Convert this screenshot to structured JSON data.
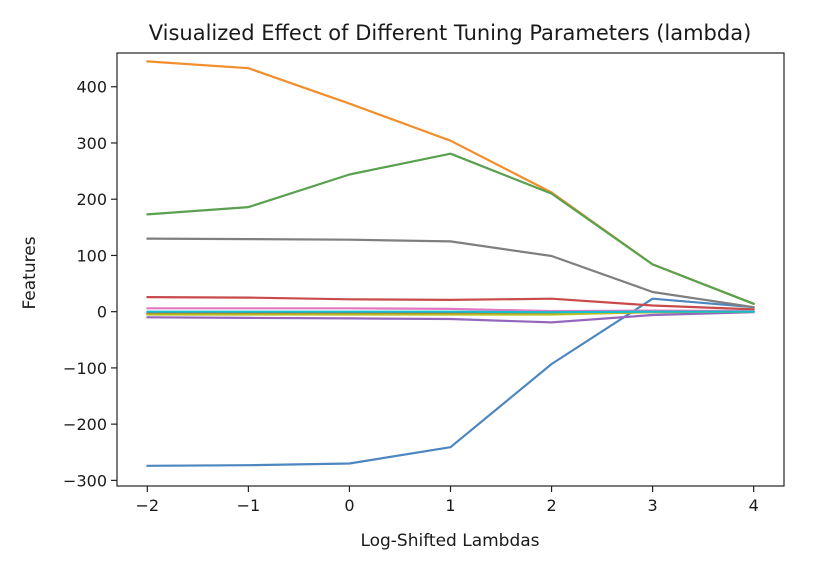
{
  "chart_data": {
    "type": "line",
    "title": "Visualized Effect of Different Tuning Parameters (lambda)",
    "xlabel": "Log-Shifted Lambdas",
    "ylabel": "Features",
    "x": [
      -2,
      -1,
      0,
      1,
      2,
      3,
      4
    ],
    "x_tick_labels": [
      "−2",
      "−1",
      "0",
      "1",
      "2",
      "3",
      "4"
    ],
    "xlim": [
      -2.3,
      4.3
    ],
    "y_ticks": [
      400,
      300,
      200,
      100,
      0,
      -100,
      -200,
      -300
    ],
    "y_tick_labels": [
      "400",
      "300",
      "200",
      "100",
      "0",
      "−100",
      "−200",
      "−300"
    ],
    "ylim": [
      -310,
      460
    ],
    "grid": false,
    "legend": false,
    "series": [
      {
        "color": "#4c87bf",
        "values": [
          -274,
          -273,
          -270,
          -241,
          -93,
          23,
          8
        ]
      },
      {
        "color": "#f28e2b",
        "values": [
          445,
          433,
          370,
          304,
          212,
          84,
          14
        ]
      },
      {
        "color": "#59a14f",
        "values": [
          173,
          186,
          244,
          281,
          210,
          84,
          14
        ]
      },
      {
        "color": "#c94a4a",
        "values": [
          26,
          25,
          22,
          21,
          23,
          11,
          4
        ]
      },
      {
        "color": "#9467bd",
        "values": [
          -10,
          -11,
          -12,
          -13,
          -19,
          -6,
          -1
        ]
      },
      {
        "color": "#8c564b",
        "values": [
          -3,
          -3,
          -3,
          -2,
          -4,
          -1,
          0
        ]
      },
      {
        "color": "#e377c2",
        "values": [
          6,
          6,
          6,
          5,
          1,
          2,
          1
        ]
      },
      {
        "color": "#7f7f7f",
        "values": [
          130,
          129,
          128,
          125,
          99,
          35,
          8
        ]
      },
      {
        "color": "#bcbd22",
        "values": [
          -5,
          -5,
          -5,
          -5,
          -5,
          -1,
          0
        ]
      },
      {
        "color": "#17becf",
        "values": [
          0,
          0,
          0,
          0,
          -1,
          0,
          0
        ]
      }
    ]
  }
}
